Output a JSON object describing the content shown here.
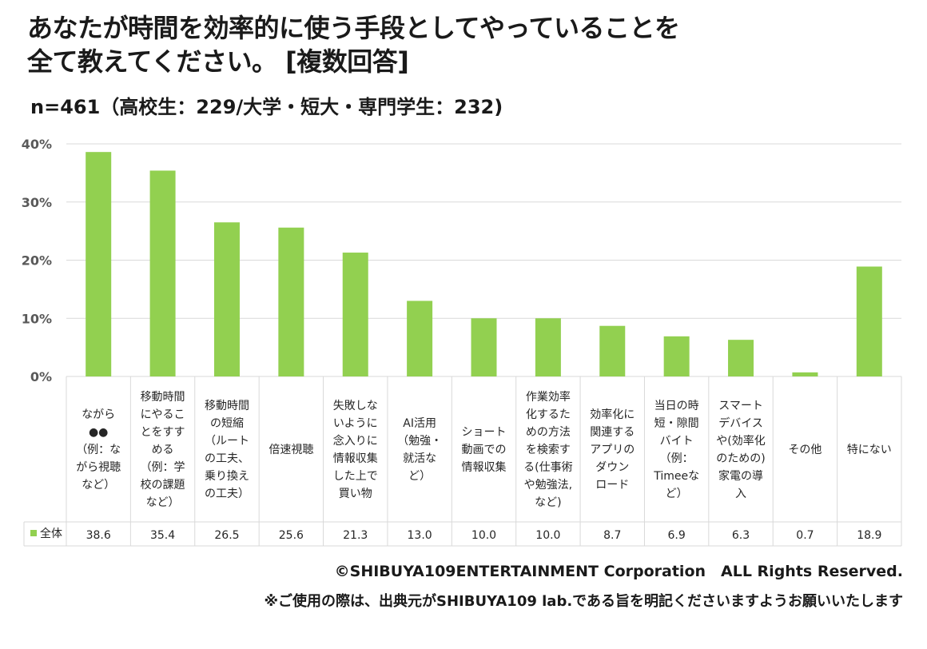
{
  "title_lines": [
    "あなたが時間を効率的に使う手段としてやっていることを",
    "全て教えてください。 [複数回答]"
  ],
  "subtitle": "n=461（高校生：229/大学・短大・専門学生：232)",
  "copyright": "©SHIBUYA109ENTERTAINMENT Corporation　ALL Rights Reserved.",
  "note": "※ご使用の際は、出典元がSHIBUYA109 lab.である旨を明記くださいますようお願いいたします",
  "colors": {
    "bar": "#92d050",
    "grid": "#d9d9d9",
    "border": "#d9d9d9"
  },
  "chart_data": {
    "type": "bar",
    "title": "あなたが時間を効率的に使う手段としてやっていることを全て教えてください。 [複数回答]",
    "ylim": [
      0,
      40
    ],
    "yticks": [
      "0%",
      "10%",
      "20%",
      "30%",
      "40%"
    ],
    "ytick_values": [
      0,
      10,
      20,
      30,
      40
    ],
    "legend": "全体",
    "categories": [
      [
        "ながら",
        "●●",
        "（例：な",
        "がら視聴",
        "など）"
      ],
      [
        "移動時間",
        "にやるこ",
        "とをすす",
        "める",
        "（例：学",
        "校の課題",
        "など）"
      ],
      [
        "移動時間",
        "の短縮",
        "（ルート",
        "の工夫、",
        "乗り換え",
        "の工夫）"
      ],
      [
        "倍速視聴"
      ],
      [
        "失敗しな",
        "いように",
        "念入りに",
        "情報収集",
        "した上で",
        "買い物"
      ],
      [
        "AI活用",
        "（勉強・",
        "就活な",
        "ど）"
      ],
      [
        "ショート",
        "動画での",
        "情報収集"
      ],
      [
        "作業効率",
        "化するた",
        "めの方法",
        "を検索す",
        "る(仕事術",
        "や勉強法,",
        "など)"
      ],
      [
        "効率化に",
        "関連する",
        "アプリの",
        "ダウン",
        "ロード"
      ],
      [
        "当日の時",
        "短・隙間",
        "バイト",
        "（例：",
        "Timeeな",
        "ど）"
      ],
      [
        "スマート",
        "デバイス",
        "や(効率化",
        "のための)",
        "家電の導",
        "入"
      ],
      [
        "その他"
      ],
      [
        "特にない"
      ]
    ],
    "values": [
      38.6,
      35.4,
      26.5,
      25.6,
      21.3,
      13.0,
      10.0,
      10.0,
      8.7,
      6.9,
      6.3,
      0.7,
      18.9
    ],
    "value_labels": [
      "38.6",
      "35.4",
      "26.5",
      "25.6",
      "21.3",
      "13.0",
      "10.0",
      "10.0",
      "8.7",
      "6.9",
      "6.3",
      "0.7",
      "18.9"
    ]
  }
}
